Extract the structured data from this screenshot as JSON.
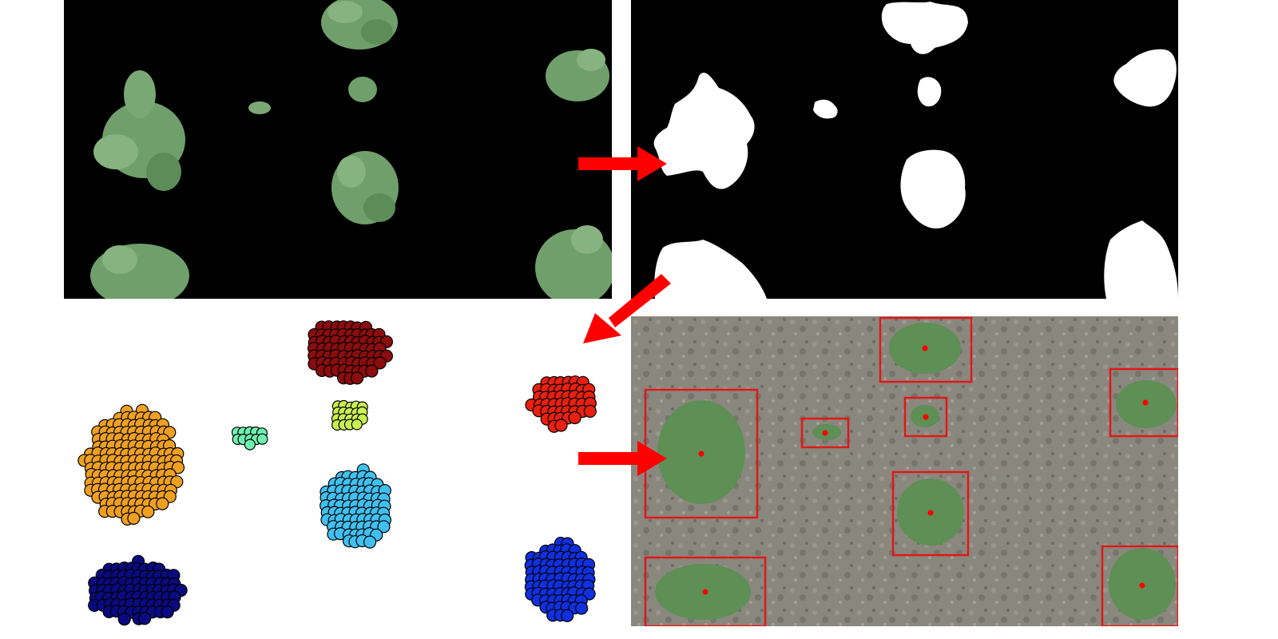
{
  "figure": {
    "panels": [
      {
        "id": "segmented",
        "kind": "segmented-color-image"
      },
      {
        "id": "binary",
        "kind": "binary-mask"
      },
      {
        "id": "clusters",
        "kind": "clustered-points"
      },
      {
        "id": "detections",
        "kind": "detection-result"
      }
    ],
    "colors": {
      "arrow": "#ff0000",
      "plant": "#6f9f6a",
      "plant_dark": "#4e7d4c",
      "mask": "#ffffff",
      "background": "#000000",
      "box": "#e01818",
      "soil": "#8a877f"
    },
    "clusters": [
      {
        "name": "dark-red",
        "color": "#8b0d0d"
      },
      {
        "name": "orange",
        "color": "#f0a020"
      },
      {
        "name": "teal",
        "color": "#6ff0b0"
      },
      {
        "name": "yellow-green",
        "color": "#c8f050"
      },
      {
        "name": "red",
        "color": "#e82010"
      },
      {
        "name": "light-blue",
        "color": "#40c0f0"
      },
      {
        "name": "navy",
        "color": "#0a0a80"
      },
      {
        "name": "blue",
        "color": "#1030e0"
      }
    ]
  }
}
